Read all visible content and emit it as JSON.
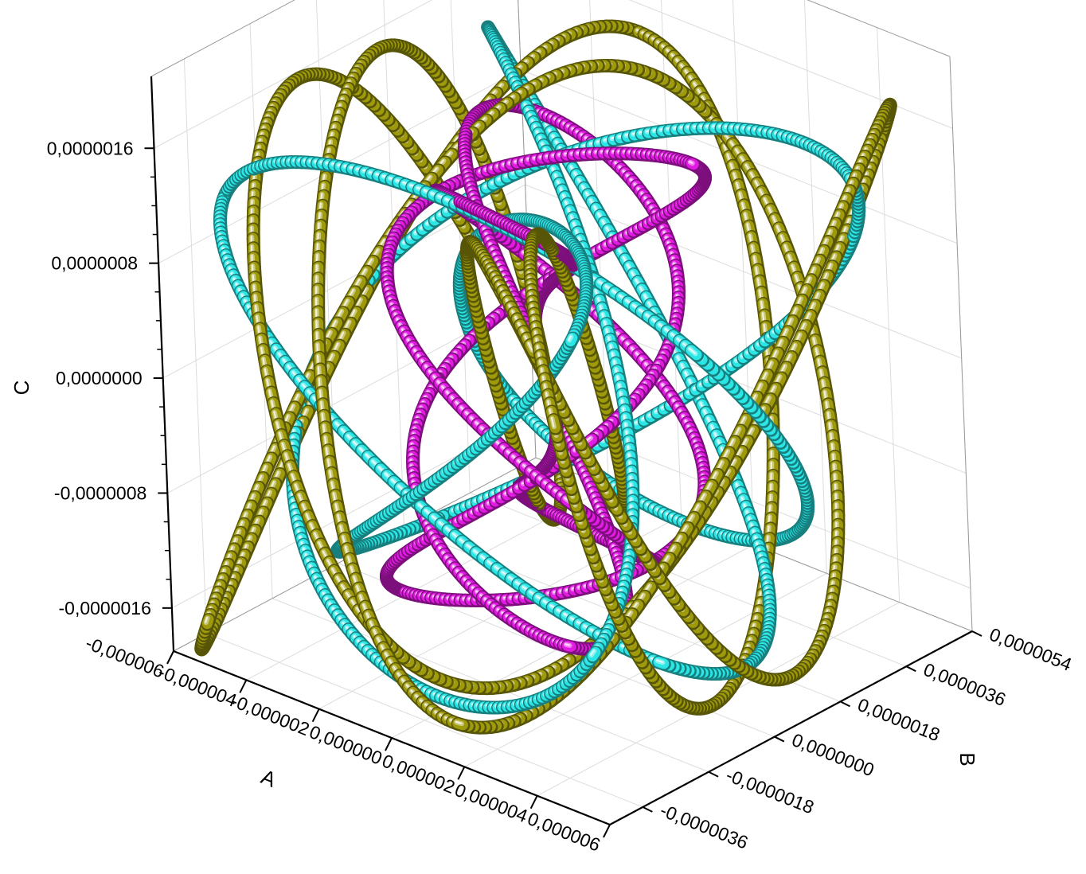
{
  "chart_data": {
    "type": "line3d",
    "title": "",
    "axes": {
      "x": {
        "label": "A",
        "ticks": [
          "-0,000006",
          "-0,000004",
          "-0,000002",
          "0,000000",
          "0,000002",
          "0,000004",
          "0,000006"
        ],
        "range": [
          -6e-06,
          6e-06
        ]
      },
      "y": {
        "label": "B",
        "ticks": [
          "-0,0000036",
          "-0,0000018",
          "0,0000000",
          "0,0000018",
          "0,0000036",
          "0,0000054"
        ],
        "range": [
          -4.5e-06,
          5.4e-06
        ]
      },
      "z": {
        "label": "C",
        "ticks": [
          "-0,0000016",
          "-0,0000008",
          "0,0000000",
          "0,0000008",
          "0,0000016"
        ],
        "range": [
          -1.9e-06,
          2.1e-06
        ]
      }
    },
    "grid": true,
    "legend": "none",
    "series": [
      {
        "color": "#9e9a0c",
        "param": {
          "ax": 5.2e-06,
          "fx": 3,
          "px": 0.0,
          "ay": 4.6e-06,
          "fy": 5,
          "py": 0.7,
          "az": 1.8e-06,
          "fz": 7,
          "pz": 0.3
        },
        "samples": 1200
      },
      {
        "color": "#2ce6e6",
        "param": {
          "ax": 4.8e-06,
          "fx": 5,
          "px": 1.1,
          "ay": 4e-06,
          "fy": 3,
          "py": 0.2,
          "az": 1.6e-06,
          "fz": 4,
          "pz": 1.4
        },
        "samples": 1100
      },
      {
        "color": "#e21be2",
        "param": {
          "ax": 2.4e-06,
          "fx": 7,
          "px": 0.5,
          "ay": 2.2e-06,
          "fy": 5,
          "py": 1.9,
          "az": 1.5e-06,
          "fz": 3,
          "pz": 0.9
        },
        "samples": 1000
      }
    ]
  }
}
